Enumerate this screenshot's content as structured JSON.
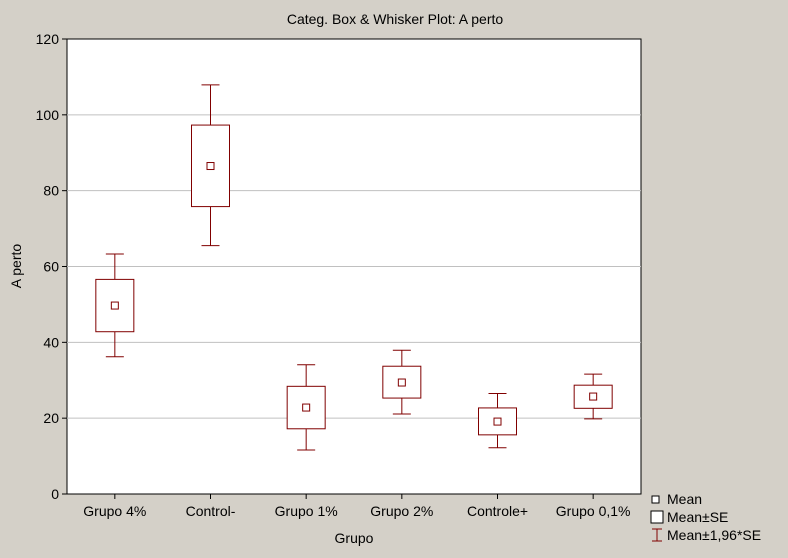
{
  "chart_data": {
    "type": "boxplot",
    "title": "Categ. Box & Whisker Plot: A perto",
    "xlabel": "Grupo",
    "ylabel": "A perto",
    "ylim": [
      0,
      120
    ],
    "yticks": [
      0,
      20,
      40,
      60,
      80,
      100,
      120
    ],
    "grid": true,
    "legend_position": "bottom-right",
    "categories": [
      "Grupo 4%",
      "Control-",
      "Grupo 1%",
      "Grupo 2%",
      "Controle+",
      "Grupo 0,1%"
    ],
    "mean": [
      49.7,
      86.5,
      22.8,
      29.4,
      19.1,
      25.7
    ],
    "mean_minus_se": [
      42.8,
      75.8,
      17.2,
      25.3,
      15.6,
      22.6
    ],
    "mean_plus_se": [
      56.6,
      97.3,
      28.4,
      33.7,
      22.7,
      28.7
    ],
    "mean_minus_196se": [
      36.2,
      65.5,
      11.6,
      21.1,
      12.2,
      19.8
    ],
    "mean_plus_196se": [
      63.3,
      107.9,
      34.1,
      37.9,
      26.5,
      31.6
    ],
    "legend": [
      "Mean",
      "Mean±SE",
      "Mean±1,96*SE"
    ],
    "colors": {
      "background": "#d4d0c8",
      "plot_area": "#ffffff",
      "series": "#800000",
      "grid": "#c0c0c0",
      "axis": "#000000"
    }
  }
}
